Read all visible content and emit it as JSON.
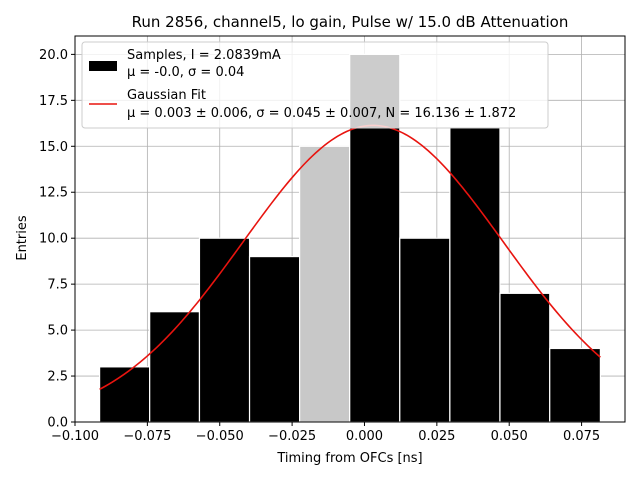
{
  "chart_data": {
    "type": "bar",
    "title": "Run 2856, channel5, lo gain, Pulse w/ 15.0 dB Attenuation",
    "xlabel": "Timing from OFCs [ns]",
    "ylabel": "Entries",
    "xlim": [
      -0.1,
      0.09
    ],
    "ylim": [
      0,
      21
    ],
    "xticks": [
      -0.1,
      -0.075,
      -0.05,
      -0.025,
      0.0,
      0.025,
      0.05,
      0.075
    ],
    "xtick_labels": [
      "−0.100",
      "−0.075",
      "−0.050",
      "−0.025",
      "0.000",
      "0.025",
      "0.050",
      "0.075"
    ],
    "yticks": [
      0,
      2.5,
      5,
      7.5,
      10,
      12.5,
      15,
      17.5,
      20
    ],
    "ytick_labels": [
      "0.0",
      "2.5",
      "5.0",
      "7.5",
      "10.0",
      "12.5",
      "15.0",
      "17.5",
      "20.0"
    ],
    "grid": true,
    "legend_position": "top",
    "histogram": {
      "name": "Samples, I = 2.0839mA",
      "stats": "μ = -0.0, σ = 0.04",
      "color": "#000000",
      "highlight_color": "#c8c8c8",
      "highlight_bin": 4,
      "bins": [
        {
          "x0": -0.0915,
          "x1": -0.0742,
          "count": 3
        },
        {
          "x0": -0.0742,
          "x1": -0.057,
          "count": 6
        },
        {
          "x0": -0.057,
          "x1": -0.0397,
          "count": 10
        },
        {
          "x0": -0.0397,
          "x1": -0.0224,
          "count": 9
        },
        {
          "x0": -0.0224,
          "x1": -0.0051,
          "count": 15
        },
        {
          "x0": -0.0051,
          "x1": 0.0122,
          "count": 20
        },
        {
          "x0": 0.0122,
          "x1": 0.0295,
          "count": 10
        },
        {
          "x0": 0.0295,
          "x1": 0.0468,
          "count": 16
        },
        {
          "x0": 0.0468,
          "x1": 0.064,
          "count": 7
        },
        {
          "x0": 0.064,
          "x1": 0.0815,
          "count": 4
        }
      ]
    },
    "fit": {
      "name": "Gaussian Fit",
      "stats": "μ = 0.003 ± 0.006, σ = 0.045 ± 0.007, N = 16.136 ± 1.872",
      "mu": 0.003,
      "sigma": 0.045,
      "N": 16.136,
      "x_range": [
        -0.0915,
        0.0815
      ],
      "color": "#e8140f"
    }
  }
}
